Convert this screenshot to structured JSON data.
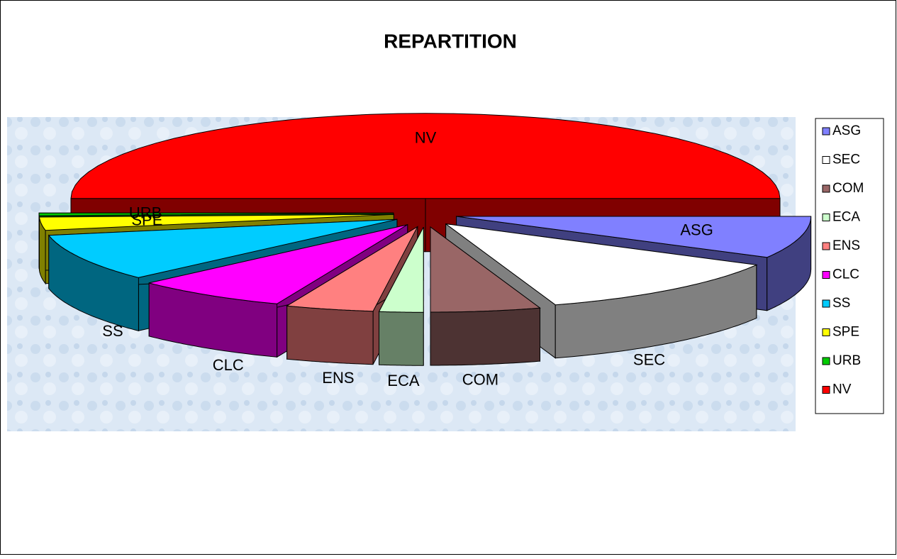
{
  "chart_data": {
    "type": "pie3d",
    "title": "REPARTITION",
    "categories": [
      "ASG",
      "SEC",
      "COM",
      "ECA",
      "ENS",
      "CLC",
      "SS",
      "SPE",
      "URB",
      "NV"
    ],
    "values": [
      8,
      12,
      5,
      2,
      4,
      7,
      9,
      2.5,
      0.5,
      50
    ],
    "colors": [
      "#8080ff",
      "#ffffff",
      "#996666",
      "#ccffcc",
      "#ff8080",
      "#ff00ff",
      "#00ccff",
      "#ffff00",
      "#00cc00",
      "#ff0000"
    ],
    "legend": "right"
  }
}
